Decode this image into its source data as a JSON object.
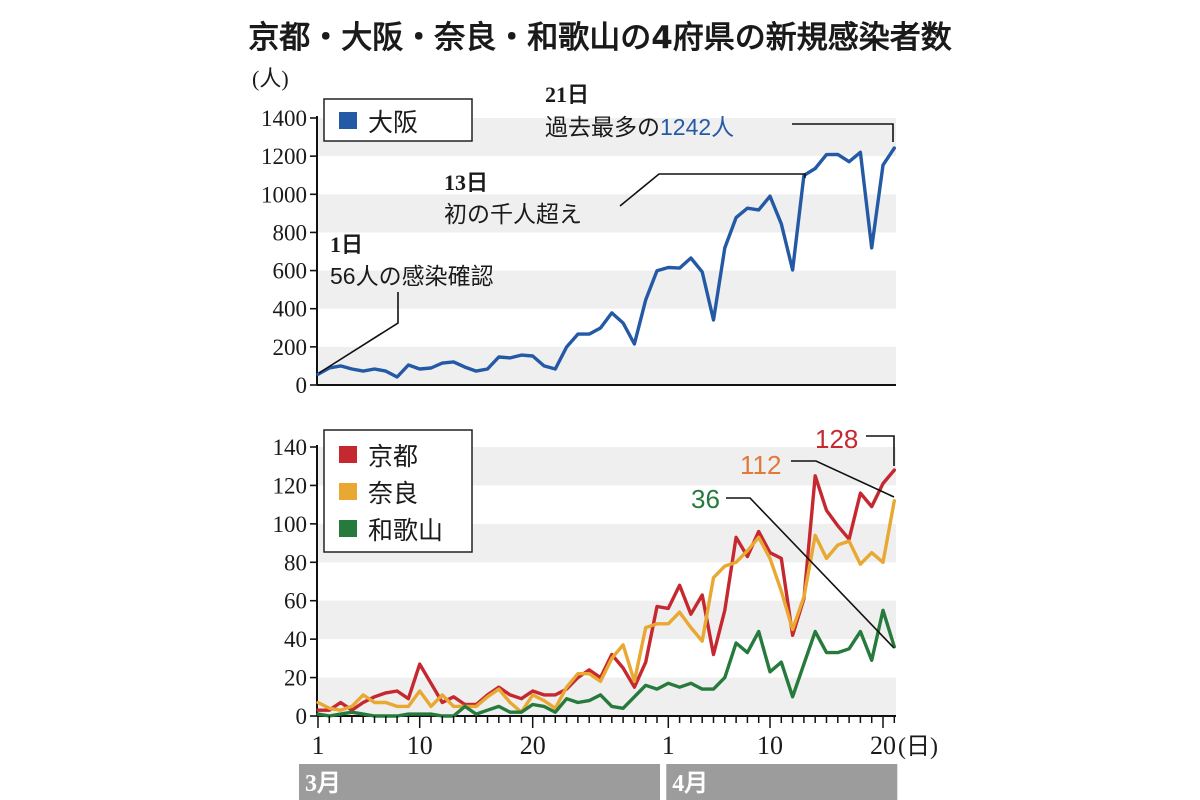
{
  "title": "京都・大阪・奈良・和歌山の4府県の新規感染者数",
  "colors": {
    "osaka": "#2459a6",
    "kyoto": "#c62830",
    "nara": "#e8a832",
    "wakayama": "#267a3c",
    "band": "#efefef",
    "month_bar": "#9c9c9c"
  },
  "x_axis": {
    "unit_label": "(日)",
    "ticks": [
      {
        "label": "1",
        "index": 0
      },
      {
        "label": "10",
        "index": 9
      },
      {
        "label": "20",
        "index": 19
      },
      {
        "label": "1",
        "index": 31
      },
      {
        "label": "10",
        "index": 40
      },
      {
        "label": "20",
        "index": 50
      }
    ],
    "months": [
      {
        "label": "3月",
        "start_index": 0,
        "end_index": 30
      },
      {
        "label": "4月",
        "start_index": 31,
        "end_index": 51
      }
    ]
  },
  "annotations_top": {
    "a1_day": "1日",
    "a1_text": "56人の感染確認",
    "a13_day": "13日",
    "a13_text": "初の千人超え",
    "a21_day": "21日",
    "a21_text_prefix": "過去最多の",
    "a21_text_value": "1242人"
  },
  "annotations_bottom": {
    "kyoto_last": "128",
    "nara_last": "112",
    "wakayama_last": "36"
  },
  "chart_data": [
    {
      "type": "line",
      "title": "京都・大阪・奈良・和歌山の4府県の新規感染者数",
      "ylabel": "(人)",
      "xlabel": "(日)",
      "ylim": [
        0,
        1400
      ],
      "yticks": [
        0,
        200,
        400,
        600,
        800,
        1000,
        1200,
        1400
      ],
      "grid": "alternating horizontal bands",
      "legend_position": "top-left",
      "x": [
        "3/1",
        "3/2",
        "3/3",
        "3/4",
        "3/5",
        "3/6",
        "3/7",
        "3/8",
        "3/9",
        "3/10",
        "3/11",
        "3/12",
        "3/13",
        "3/14",
        "3/15",
        "3/16",
        "3/17",
        "3/18",
        "3/19",
        "3/20",
        "3/21",
        "3/22",
        "3/23",
        "3/24",
        "3/25",
        "3/26",
        "3/27",
        "3/28",
        "3/29",
        "3/30",
        "3/31",
        "4/1",
        "4/2",
        "4/3",
        "4/4",
        "4/5",
        "4/6",
        "4/7",
        "4/8",
        "4/9",
        "4/10",
        "4/11",
        "4/12",
        "4/13",
        "4/14",
        "4/15",
        "4/16",
        "4/17",
        "4/18",
        "4/19",
        "4/20",
        "4/21"
      ],
      "series": [
        {
          "name": "大阪",
          "color_key": "osaka",
          "values": [
            56,
            89,
            100,
            84,
            73,
            84,
            73,
            42,
            105,
            84,
            89,
            115,
            121,
            94,
            73,
            84,
            147,
            142,
            157,
            152,
            100,
            84,
            199,
            267,
            267,
            299,
            378,
            325,
            215,
            446,
            599,
            616,
            613,
            666,
            593,
            341,
            719,
            878,
            927,
            918,
            990,
            845,
            603,
            1099,
            1135,
            1208,
            1209,
            1171,
            1220,
            719,
            1153,
            1242
          ]
        }
      ]
    },
    {
      "type": "line",
      "ylim": [
        0,
        140
      ],
      "yticks": [
        0,
        20,
        40,
        60,
        80,
        100,
        120,
        140
      ],
      "grid": "alternating horizontal bands",
      "legend_position": "top-left",
      "x": [
        "3/1",
        "3/2",
        "3/3",
        "3/4",
        "3/5",
        "3/6",
        "3/7",
        "3/8",
        "3/9",
        "3/10",
        "3/11",
        "3/12",
        "3/13",
        "3/14",
        "3/15",
        "3/16",
        "3/17",
        "3/18",
        "3/19",
        "3/20",
        "3/21",
        "3/22",
        "3/23",
        "3/24",
        "3/25",
        "3/26",
        "3/27",
        "3/28",
        "3/29",
        "3/30",
        "3/31",
        "4/1",
        "4/2",
        "4/3",
        "4/4",
        "4/5",
        "4/6",
        "4/7",
        "4/8",
        "4/9",
        "4/10",
        "4/11",
        "4/12",
        "4/13",
        "4/14",
        "4/15",
        "4/16",
        "4/17",
        "4/18",
        "4/19",
        "4/20",
        "4/21"
      ],
      "series": [
        {
          "name": "京都",
          "color_key": "kyoto",
          "values": [
            3,
            3,
            7,
            3,
            7,
            10,
            12,
            13,
            9,
            27,
            17,
            7,
            10,
            6,
            6,
            11,
            15,
            11,
            9,
            13,
            11,
            11,
            14,
            20,
            24,
            20,
            32,
            25,
            15,
            28,
            57,
            56,
            68,
            53,
            63,
            32,
            55,
            93,
            83,
            96,
            85,
            82,
            42,
            61,
            125,
            107,
            99,
            92,
            116,
            109,
            121,
            128
          ]
        },
        {
          "name": "奈良",
          "color_key": "nara",
          "values": [
            7,
            4,
            3,
            5,
            11,
            7,
            7,
            5,
            5,
            13,
            5,
            11,
            5,
            5,
            5,
            10,
            14,
            7,
            2,
            11,
            8,
            4,
            15,
            22,
            22,
            18,
            30,
            37,
            18,
            46,
            48,
            48,
            54,
            46,
            39,
            72,
            78,
            80,
            86,
            93,
            82,
            65,
            45,
            62,
            94,
            82,
            89,
            91,
            79,
            85,
            80,
            112
          ]
        },
        {
          "name": "和歌山",
          "color_key": "wakayama",
          "values": [
            1,
            0,
            1,
            2,
            1,
            0,
            0,
            0,
            1,
            1,
            1,
            0,
            0,
            5,
            1,
            3,
            5,
            2,
            2,
            6,
            5,
            2,
            9,
            7,
            8,
            11,
            5,
            4,
            10,
            16,
            14,
            17,
            15,
            17,
            14,
            14,
            20,
            38,
            33,
            44,
            23,
            28,
            10,
            27,
            44,
            33,
            33,
            35,
            44,
            29,
            55,
            36
          ]
        }
      ]
    }
  ]
}
